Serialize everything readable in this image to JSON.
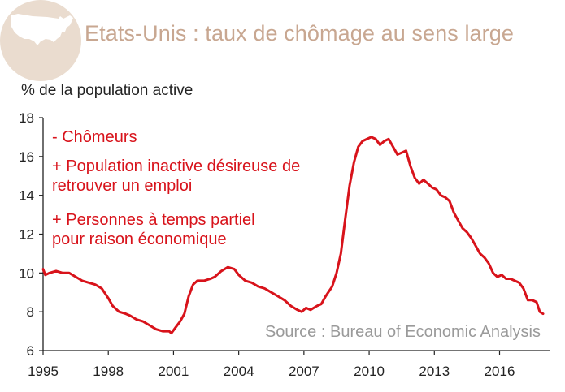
{
  "header": {
    "title": "Etats-Unis : taux de chômage au sens large",
    "map_icon": "usa-map-icon"
  },
  "colors": {
    "series": "#d8131b",
    "title": "#c8a791",
    "badge": "#eadccf",
    "source": "#9a9a9a"
  },
  "annotations": {
    "legend_lines": [
      "- Chômeurs",
      "+ Population inactive désireuse de",
      "retrouver un emploi",
      "+ Personnes à temps partiel",
      "pour raison économique"
    ],
    "source": "Source : Bureau of Economic Analysis"
  },
  "chart_data": {
    "type": "line",
    "title": "Etats-Unis : taux de chômage au sens large",
    "ylabel": "% de la population active",
    "xlabel": "",
    "xlim": [
      1995,
      2018.3
    ],
    "ylim": [
      6,
      18
    ],
    "x_ticks": [
      "1995",
      "1998",
      "2001",
      "2004",
      "2007",
      "2010",
      "2013",
      "2016"
    ],
    "y_ticks": [
      "6",
      "8",
      "10",
      "12",
      "14",
      "16",
      "18"
    ],
    "grid": false,
    "series": [
      {
        "name": "",
        "points": [
          [
            1995.0,
            10.2
          ],
          [
            1995.1,
            9.9
          ],
          [
            1995.3,
            10.0
          ],
          [
            1995.6,
            10.1
          ],
          [
            1995.9,
            10.0
          ],
          [
            1996.2,
            10.0
          ],
          [
            1996.5,
            9.8
          ],
          [
            1996.8,
            9.6
          ],
          [
            1997.1,
            9.5
          ],
          [
            1997.4,
            9.4
          ],
          [
            1997.7,
            9.2
          ],
          [
            1998.0,
            8.7
          ],
          [
            1998.2,
            8.3
          ],
          [
            1998.5,
            8.0
          ],
          [
            1998.8,
            7.9
          ],
          [
            1999.0,
            7.8
          ],
          [
            1999.3,
            7.6
          ],
          [
            1999.6,
            7.5
          ],
          [
            1999.9,
            7.3
          ],
          [
            2000.2,
            7.1
          ],
          [
            2000.5,
            7.0
          ],
          [
            2000.8,
            7.0
          ],
          [
            2000.9,
            6.9
          ],
          [
            2001.1,
            7.2
          ],
          [
            2001.3,
            7.5
          ],
          [
            2001.5,
            7.9
          ],
          [
            2001.7,
            8.8
          ],
          [
            2001.9,
            9.4
          ],
          [
            2002.1,
            9.6
          ],
          [
            2002.4,
            9.6
          ],
          [
            2002.7,
            9.7
          ],
          [
            2002.9,
            9.8
          ],
          [
            2003.2,
            10.1
          ],
          [
            2003.5,
            10.3
          ],
          [
            2003.8,
            10.2
          ],
          [
            2004.0,
            9.9
          ],
          [
            2004.3,
            9.6
          ],
          [
            2004.6,
            9.5
          ],
          [
            2004.9,
            9.3
          ],
          [
            2005.2,
            9.2
          ],
          [
            2005.5,
            9.0
          ],
          [
            2005.8,
            8.8
          ],
          [
            2006.1,
            8.6
          ],
          [
            2006.4,
            8.3
          ],
          [
            2006.7,
            8.1
          ],
          [
            2006.9,
            8.0
          ],
          [
            2007.1,
            8.2
          ],
          [
            2007.3,
            8.1
          ],
          [
            2007.6,
            8.3
          ],
          [
            2007.8,
            8.4
          ],
          [
            2008.0,
            8.8
          ],
          [
            2008.3,
            9.3
          ],
          [
            2008.5,
            10.0
          ],
          [
            2008.7,
            11.0
          ],
          [
            2008.9,
            12.8
          ],
          [
            2009.1,
            14.5
          ],
          [
            2009.3,
            15.7
          ],
          [
            2009.5,
            16.5
          ],
          [
            2009.7,
            16.8
          ],
          [
            2009.9,
            16.9
          ],
          [
            2010.1,
            17.0
          ],
          [
            2010.3,
            16.9
          ],
          [
            2010.5,
            16.6
          ],
          [
            2010.7,
            16.8
          ],
          [
            2010.9,
            16.9
          ],
          [
            2011.1,
            16.5
          ],
          [
            2011.3,
            16.1
          ],
          [
            2011.5,
            16.2
          ],
          [
            2011.7,
            16.3
          ],
          [
            2011.9,
            15.5
          ],
          [
            2012.1,
            14.9
          ],
          [
            2012.3,
            14.6
          ],
          [
            2012.5,
            14.8
          ],
          [
            2012.7,
            14.6
          ],
          [
            2012.9,
            14.4
          ],
          [
            2013.1,
            14.3
          ],
          [
            2013.3,
            14.0
          ],
          [
            2013.5,
            13.9
          ],
          [
            2013.7,
            13.7
          ],
          [
            2013.9,
            13.1
          ],
          [
            2014.1,
            12.7
          ],
          [
            2014.3,
            12.3
          ],
          [
            2014.5,
            12.1
          ],
          [
            2014.7,
            11.8
          ],
          [
            2014.9,
            11.4
          ],
          [
            2015.1,
            11.0
          ],
          [
            2015.3,
            10.8
          ],
          [
            2015.5,
            10.5
          ],
          [
            2015.7,
            10.0
          ],
          [
            2015.9,
            9.8
          ],
          [
            2016.1,
            9.9
          ],
          [
            2016.3,
            9.7
          ],
          [
            2016.5,
            9.7
          ],
          [
            2016.7,
            9.6
          ],
          [
            2016.9,
            9.5
          ],
          [
            2017.1,
            9.2
          ],
          [
            2017.3,
            8.6
          ],
          [
            2017.5,
            8.6
          ],
          [
            2017.7,
            8.5
          ],
          [
            2017.85,
            8.0
          ],
          [
            2018.0,
            7.9
          ]
        ]
      }
    ]
  }
}
